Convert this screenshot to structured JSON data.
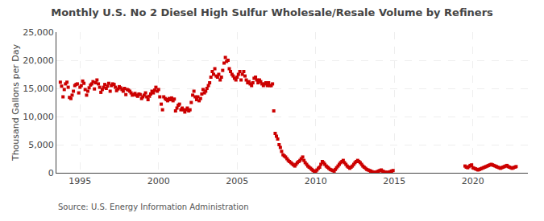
{
  "chart_data": {
    "type": "scatter",
    "title": "Monthly U.S. No 2 Diesel High Sulfur Wholesale/Resale Volume by Refiners",
    "ylabel": "Thousand Gallons per Day",
    "annotations": [
      "Source: U.S. Energy Information Administration"
    ],
    "color": "#cc0000",
    "marker": "square",
    "grid": true,
    "xlim": [
      1993.5,
      2023.5
    ],
    "xticks": [
      1995,
      2000,
      2005,
      2010,
      2015,
      2020
    ],
    "ylim": [
      0,
      25000
    ],
    "yticks": [
      0,
      {
        "value": 5000,
        "label": "5,000"
      },
      {
        "value": 10000,
        "label": "10,000"
      },
      {
        "value": 15000,
        "label": "15,000"
      },
      {
        "value": 20000,
        "label": "20,000"
      },
      {
        "value": 25000,
        "label": "25,000"
      }
    ],
    "x": [
      1993.75,
      1993.83,
      1993.92,
      1994.0,
      1994.08,
      1994.17,
      1994.25,
      1994.33,
      1994.42,
      1994.5,
      1994.58,
      1994.67,
      1994.75,
      1994.83,
      1994.92,
      1995.0,
      1995.08,
      1995.17,
      1995.25,
      1995.33,
      1995.42,
      1995.5,
      1995.58,
      1995.67,
      1995.75,
      1995.83,
      1995.92,
      1996.0,
      1996.08,
      1996.17,
      1996.25,
      1996.33,
      1996.42,
      1996.5,
      1996.58,
      1996.67,
      1996.75,
      1996.83,
      1996.92,
      1997.0,
      1997.08,
      1997.17,
      1997.25,
      1997.33,
      1997.42,
      1997.5,
      1997.58,
      1997.67,
      1997.75,
      1997.83,
      1997.92,
      1998.0,
      1998.08,
      1998.17,
      1998.25,
      1998.33,
      1998.42,
      1998.5,
      1998.58,
      1998.67,
      1998.75,
      1998.83,
      1998.92,
      1999.0,
      1999.08,
      1999.17,
      1999.25,
      1999.33,
      1999.42,
      1999.5,
      1999.58,
      1999.67,
      1999.75,
      1999.83,
      1999.92,
      2000.0,
      2000.08,
      2000.17,
      2000.25,
      2000.33,
      2000.42,
      2000.5,
      2000.58,
      2000.67,
      2000.75,
      2000.83,
      2000.92,
      2001.0,
      2001.08,
      2001.17,
      2001.25,
      2001.33,
      2001.42,
      2001.5,
      2001.58,
      2001.67,
      2001.75,
      2001.83,
      2001.92,
      2002.0,
      2002.08,
      2002.17,
      2002.25,
      2002.33,
      2002.42,
      2002.5,
      2002.58,
      2002.67,
      2002.75,
      2002.83,
      2002.92,
      2003.0,
      2003.08,
      2003.17,
      2003.25,
      2003.33,
      2003.42,
      2003.5,
      2003.58,
      2003.67,
      2003.75,
      2003.83,
      2003.92,
      2004.0,
      2004.08,
      2004.17,
      2004.25,
      2004.33,
      2004.42,
      2004.5,
      2004.58,
      2004.67,
      2004.75,
      2004.83,
      2004.92,
      2005.0,
      2005.08,
      2005.17,
      2005.25,
      2005.33,
      2005.42,
      2005.5,
      2005.58,
      2005.67,
      2005.75,
      2005.83,
      2005.92,
      2006.0,
      2006.08,
      2006.17,
      2006.25,
      2006.33,
      2006.42,
      2006.5,
      2006.58,
      2006.67,
      2006.75,
      2006.83,
      2006.92,
      2007.0,
      2007.08,
      2007.17,
      2007.25,
      2007.33,
      2007.42,
      2007.5,
      2007.58,
      2007.67,
      2007.75,
      2007.83,
      2007.92,
      2008.0,
      2008.08,
      2008.17,
      2008.25,
      2008.33,
      2008.42,
      2008.5,
      2008.58,
      2008.67,
      2008.75,
      2008.83,
      2008.92,
      2009.0,
      2009.08,
      2009.17,
      2009.25,
      2009.33,
      2009.42,
      2009.5,
      2009.58,
      2009.67,
      2009.75,
      2009.83,
      2009.92,
      2010.0,
      2010.08,
      2010.17,
      2010.25,
      2010.33,
      2010.42,
      2010.5,
      2010.58,
      2010.67,
      2010.75,
      2010.83,
      2010.92,
      2011.0,
      2011.08,
      2011.17,
      2011.25,
      2011.33,
      2011.42,
      2011.5,
      2011.58,
      2011.67,
      2011.75,
      2011.83,
      2011.92,
      2012.0,
      2012.08,
      2012.17,
      2012.25,
      2012.33,
      2012.42,
      2012.5,
      2012.58,
      2012.67,
      2012.75,
      2012.83,
      2012.92,
      2013.0,
      2013.08,
      2013.17,
      2013.25,
      2013.33,
      2013.42,
      2013.5,
      2013.58,
      2013.67,
      2013.75,
      2013.83,
      2013.92,
      2014.0,
      2014.08,
      2014.17,
      2014.25,
      2014.33,
      2014.42,
      2014.5,
      2014.58,
      2014.67,
      2014.75,
      2014.83,
      2014.92,
      2019.5,
      2019.58,
      2019.67,
      2019.75,
      2019.83,
      2019.92,
      2020.0,
      2020.08,
      2020.17,
      2020.25,
      2020.33,
      2020.42,
      2020.5,
      2020.58,
      2020.67,
      2020.75,
      2020.83,
      2020.92,
      2021.0,
      2021.08,
      2021.17,
      2021.25,
      2021.33,
      2021.42,
      2021.5,
      2021.58,
      2021.67,
      2021.75,
      2021.83,
      2021.92,
      2022.0,
      2022.08,
      2022.17,
      2022.25,
      2022.33,
      2022.42,
      2022.5,
      2022.58,
      2022.67,
      2022.75
    ],
    "values": [
      16100,
      15400,
      13500,
      14800,
      15800,
      16100,
      15200,
      13400,
      13200,
      13800,
      14500,
      15500,
      15700,
      15800,
      14200,
      15200,
      15500,
      16300,
      15900,
      14800,
      13800,
      14500,
      15100,
      15600,
      15800,
      16200,
      14900,
      16000,
      16500,
      15800,
      15200,
      14300,
      14800,
      15200,
      15700,
      15000,
      15400,
      15900,
      14500,
      15500,
      15800,
      15700,
      15200,
      14600,
      14900,
      15300,
      15100,
      14800,
      14500,
      15000,
      13900,
      14800,
      14700,
      14500,
      14200,
      13800,
      13900,
      14100,
      13800,
      13600,
      14000,
      13900,
      13200,
      13500,
      13800,
      14200,
      13500,
      13000,
      13600,
      14000,
      14500,
      14200,
      14700,
      15200,
      14500,
      14800,
      13500,
      12200,
      11200,
      13500,
      13200,
      13000,
      12800,
      13200,
      13000,
      13300,
      12800,
      13100,
      11000,
      11500,
      12000,
      12200,
      11200,
      11500,
      11200,
      10800,
      11200,
      11500,
      11000,
      11200,
      12500,
      13800,
      14500,
      13500,
      13000,
      13500,
      12800,
      13200,
      14000,
      14800,
      14200,
      14500,
      15000,
      15500,
      16000,
      17000,
      18000,
      17500,
      18500,
      17200,
      17000,
      17500,
      16500,
      17000,
      18200,
      19500,
      20500,
      19800,
      20000,
      18500,
      18000,
      17500,
      17200,
      16800,
      16500,
      17000,
      17500,
      18000,
      16500,
      17500,
      18000,
      17200,
      16500,
      16000,
      16200,
      15800,
      15500,
      16000,
      16800,
      17000,
      16500,
      16000,
      16500,
      16200,
      15800,
      15500,
      15800,
      16000,
      15500,
      16000,
      15500,
      15500,
      15800,
      11000,
      7000,
      6500,
      6000,
      5000,
      4500,
      3800,
      3200,
      3000,
      2800,
      2500,
      2200,
      2000,
      1800,
      1600,
      1400,
      1200,
      1500,
      1800,
      2000,
      2200,
      2500,
      2800,
      2200,
      1800,
      1500,
      1200,
      1000,
      800,
      600,
      400,
      200,
      300,
      500,
      800,
      1000,
      1500,
      2000,
      1800,
      1500,
      1200,
      1000,
      800,
      600,
      500,
      400,
      300,
      600,
      900,
      1200,
      1500,
      1800,
      2000,
      2200,
      1800,
      1500,
      1200,
      1000,
      800,
      1000,
      1200,
      1500,
      1800,
      2000,
      2200,
      2000,
      1800,
      1500,
      1200,
      1000,
      800,
      600,
      500,
      400,
      300,
      200,
      100,
      50,
      100,
      200,
      300,
      400,
      500,
      300,
      200,
      100,
      50,
      80,
      100,
      200,
      300,
      400,
      1200,
      1000,
      900,
      1100,
      1300,
      1400,
      900,
      800,
      700,
      600,
      500,
      600,
      700,
      800,
      900,
      1000,
      1100,
      1200,
      1300,
      1400,
      1500,
      1400,
      1300,
      1200,
      1100,
      1000,
      900,
      800,
      900,
      1000,
      1100,
      1200,
      1300,
      1100,
      1000,
      900,
      800,
      900,
      1000,
      1100
    ]
  }
}
